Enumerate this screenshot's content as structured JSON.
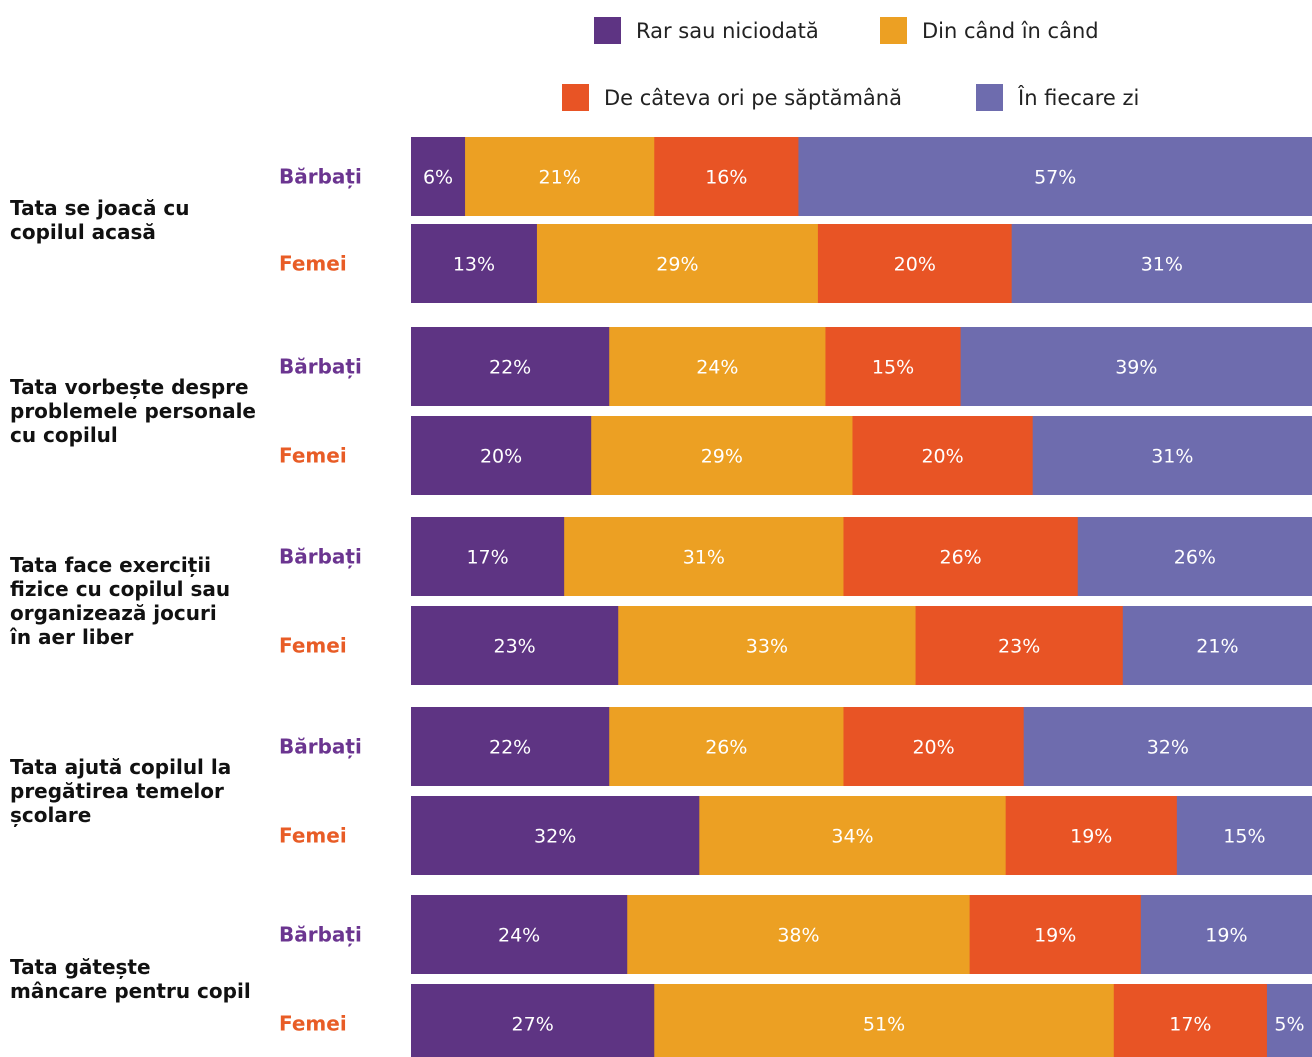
{
  "legend": [
    {
      "label": "Rar sau niciodată",
      "color": "#5e3483"
    },
    {
      "label": "Din când în când",
      "color": "#eca023"
    },
    {
      "label": "De câteva ori pe săptămână",
      "color": "#e85425"
    },
    {
      "label": "În fiecare zi",
      "color": "#6e6cae"
    }
  ],
  "group_label_colors": {
    "Bărbați": "#6b3590",
    "Femei": "#e85c26"
  },
  "chart_data": {
    "type": "bar",
    "orientation": "horizontal",
    "stacked": true,
    "xlim": [
      0,
      100
    ],
    "unit": "%",
    "series": [
      "Rar sau niciodată",
      "Din când în când",
      "De câteva ori pe săptămână",
      "În fiecare zi"
    ],
    "questions": [
      {
        "label_lines": [
          "Tata se joacă cu",
          "copilul acasă"
        ],
        "groups": [
          {
            "label": "Bărbați",
            "values": [
              6,
              21,
              16,
              57
            ]
          },
          {
            "label": "Femei",
            "values": [
              13,
              29,
              20,
              31
            ]
          }
        ]
      },
      {
        "label_lines": [
          "Tata vorbește despre",
          "problemele personale",
          "cu copilul"
        ],
        "groups": [
          {
            "label": "Bărbați",
            "values": [
              22,
              24,
              15,
              39
            ]
          },
          {
            "label": "Femei",
            "values": [
              20,
              29,
              20,
              31
            ]
          }
        ]
      },
      {
        "label_lines": [
          "Tata face exerciții",
          "fizice cu copilul sau",
          "organizează jocuri",
          "în aer liber"
        ],
        "groups": [
          {
            "label": "Bărbați",
            "values": [
              17,
              31,
              26,
              26
            ]
          },
          {
            "label": "Femei",
            "values": [
              23,
              33,
              23,
              21
            ]
          }
        ]
      },
      {
        "label_lines": [
          "Tata ajută copilul la",
          "pregătirea temelor",
          "școlare"
        ],
        "groups": [
          {
            "label": "Bărbați",
            "values": [
              22,
              26,
              20,
              32
            ]
          },
          {
            "label": "Femei",
            "values": [
              32,
              34,
              19,
              15
            ]
          }
        ]
      },
      {
        "label_lines": [
          "Tata gătește",
          "mâncare pentru copil"
        ],
        "groups": [
          {
            "label": "Bărbați",
            "values": [
              24,
              38,
              19,
              19
            ]
          },
          {
            "label": "Femei",
            "values": [
              27,
              51,
              17,
              5
            ]
          }
        ]
      }
    ]
  }
}
